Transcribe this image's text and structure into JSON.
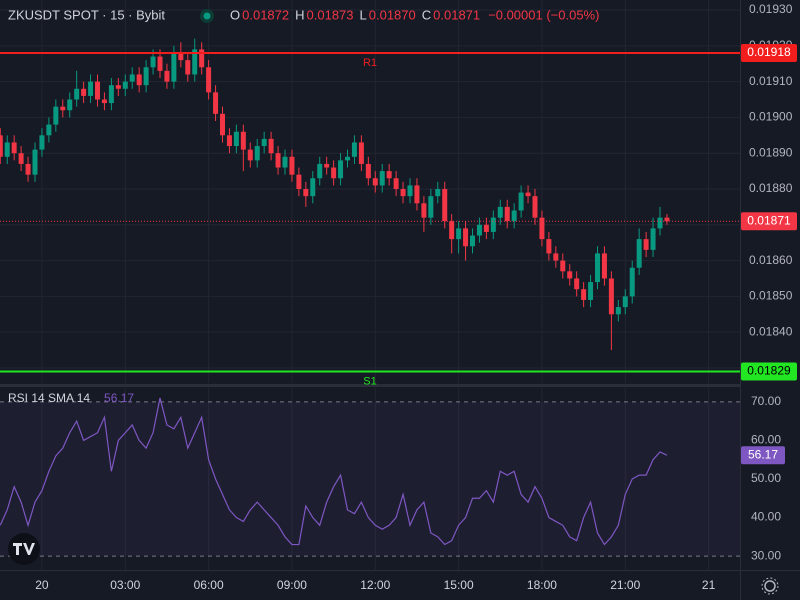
{
  "header": {
    "symbol": "ZKUSDT SPOT · 15 · Bybit",
    "ohlc": [
      {
        "key": "O",
        "value": "0.01872"
      },
      {
        "key": "H",
        "value": "0.01873"
      },
      {
        "key": "L",
        "value": "0.01870"
      },
      {
        "key": "C",
        "value": "0.01871"
      }
    ],
    "change": "−0.00001 (−0.05%)"
  },
  "chart_data": [
    {
      "type": "candlestick",
      "up_color": "#089981",
      "down_color": "#f23645",
      "grid": true,
      "x": [
        -1.5,
        -1.25,
        -1,
        -0.75,
        -0.5,
        -0.25,
        0,
        0.25,
        0.5,
        0.75,
        1,
        1.25,
        1.5,
        1.75,
        2,
        2.25,
        2.5,
        2.75,
        3,
        3.25,
        3.5,
        3.75,
        4,
        4.25,
        4.5,
        4.75,
        5,
        5.25,
        5.5,
        5.75,
        6,
        6.25,
        6.5,
        6.75,
        7,
        7.25,
        7.5,
        7.75,
        8,
        8.25,
        8.5,
        8.75,
        9,
        9.25,
        9.5,
        9.75,
        10,
        10.25,
        10.5,
        10.75,
        11,
        11.25,
        11.5,
        11.75,
        12,
        12.25,
        12.5,
        12.75,
        13,
        13.25,
        13.5,
        13.75,
        14,
        14.25,
        14.5,
        14.75,
        15,
        15.25,
        15.5,
        15.75,
        16,
        16.25,
        16.5,
        16.75,
        17,
        17.25,
        17.5,
        17.75,
        18,
        18.25,
        18.5,
        18.75,
        19,
        19.25,
        19.5,
        19.75,
        20,
        20.25,
        20.5,
        20.75,
        21,
        21.25,
        21.5,
        21.75,
        22,
        22.25,
        22.5
      ],
      "open": [
        0.01895,
        0.01889,
        0.01893,
        0.0189,
        0.01887,
        0.01884,
        0.01891,
        0.01895,
        0.01898,
        0.01903,
        0.01902,
        0.01905,
        0.01908,
        0.01906,
        0.0191,
        0.01905,
        0.01904,
        0.01909,
        0.01908,
        0.0191,
        0.01912,
        0.01909,
        0.01914,
        0.01917,
        0.01913,
        0.0191,
        0.01918,
        0.01916,
        0.01912,
        0.01919,
        0.01914,
        0.01907,
        0.01901,
        0.01895,
        0.01892,
        0.01896,
        0.01891,
        0.01888,
        0.01892,
        0.01894,
        0.0189,
        0.01886,
        0.01889,
        0.01884,
        0.0188,
        0.01878,
        0.01883,
        0.01887,
        0.01886,
        0.01883,
        0.01888,
        0.01889,
        0.01893,
        0.01887,
        0.01883,
        0.01881,
        0.01885,
        0.01883,
        0.0188,
        0.01878,
        0.01881,
        0.01876,
        0.01872,
        0.01878,
        0.0188,
        0.01871,
        0.01866,
        0.01869,
        0.01864,
        0.01867,
        0.0187,
        0.01868,
        0.01872,
        0.01875,
        0.01871,
        0.01874,
        0.01879,
        0.01878,
        0.01872,
        0.01866,
        0.01862,
        0.0186,
        0.01857,
        0.01855,
        0.01852,
        0.01849,
        0.01854,
        0.01862,
        0.01855,
        0.01845,
        0.01847,
        0.0185,
        0.01858,
        0.01866,
        0.01863,
        0.01869,
        0.01872
      ],
      "high": [
        0.01897,
        0.01895,
        0.01895,
        0.01892,
        0.01889,
        0.01893,
        0.01897,
        0.019,
        0.01905,
        0.01905,
        0.01907,
        0.01913,
        0.0191,
        0.01912,
        0.01912,
        0.01907,
        0.01911,
        0.01911,
        0.01912,
        0.01914,
        0.01914,
        0.01916,
        0.01919,
        0.01919,
        0.01915,
        0.0192,
        0.01921,
        0.01918,
        0.01922,
        0.01921,
        0.01916,
        0.01909,
        0.01903,
        0.01897,
        0.01898,
        0.01898,
        0.01893,
        0.01894,
        0.01896,
        0.01896,
        0.01892,
        0.01891,
        0.01891,
        0.01886,
        0.01882,
        0.01885,
        0.01889,
        0.01889,
        0.01888,
        0.0189,
        0.01891,
        0.01895,
        0.01895,
        0.01889,
        0.01885,
        0.01887,
        0.01887,
        0.01885,
        0.01882,
        0.01883,
        0.01883,
        0.01878,
        0.0188,
        0.01882,
        0.01882,
        0.01873,
        0.01871,
        0.01871,
        0.01869,
        0.01872,
        0.01872,
        0.01874,
        0.01877,
        0.01877,
        0.01876,
        0.01881,
        0.01881,
        0.0188,
        0.01874,
        0.01868,
        0.01864,
        0.01862,
        0.01859,
        0.01857,
        0.01854,
        0.01856,
        0.01864,
        0.01864,
        0.01857,
        0.01849,
        0.01852,
        0.0186,
        0.01869,
        0.01868,
        0.01872,
        0.01875,
        0.01873
      ],
      "low": [
        0.01887,
        0.01887,
        0.01888,
        0.01885,
        0.01882,
        0.01882,
        0.01889,
        0.01893,
        0.01896,
        0.019,
        0.019,
        0.01903,
        0.01904,
        0.01904,
        0.01903,
        0.01902,
        0.01902,
        0.01906,
        0.01906,
        0.01908,
        0.01907,
        0.01907,
        0.01912,
        0.01911,
        0.01908,
        0.01908,
        0.01914,
        0.0191,
        0.0191,
        0.01912,
        0.01905,
        0.01899,
        0.01893,
        0.0189,
        0.0189,
        0.01885,
        0.01886,
        0.01886,
        0.0189,
        0.01888,
        0.01884,
        0.01884,
        0.01882,
        0.01878,
        0.01875,
        0.01876,
        0.01881,
        0.01884,
        0.01881,
        0.01881,
        0.01886,
        0.01887,
        0.01885,
        0.01881,
        0.01879,
        0.01879,
        0.01881,
        0.01878,
        0.01876,
        0.01876,
        0.01874,
        0.01868,
        0.0187,
        0.01876,
        0.01869,
        0.01862,
        0.01862,
        0.0186,
        0.01862,
        0.01865,
        0.01866,
        0.01866,
        0.0187,
        0.01869,
        0.01869,
        0.01872,
        0.01876,
        0.0187,
        0.01864,
        0.0186,
        0.01858,
        0.01855,
        0.01853,
        0.0185,
        0.01847,
        0.01847,
        0.01852,
        0.01853,
        0.01835,
        0.01843,
        0.01845,
        0.01848,
        0.01856,
        0.01861,
        0.01861,
        0.01867,
        0.0187
      ],
      "close": [
        0.01889,
        0.01893,
        0.0189,
        0.01887,
        0.01884,
        0.01891,
        0.01895,
        0.01898,
        0.01903,
        0.01902,
        0.01905,
        0.01908,
        0.01906,
        0.0191,
        0.01905,
        0.01904,
        0.01909,
        0.01908,
        0.0191,
        0.01912,
        0.01909,
        0.01914,
        0.01917,
        0.01913,
        0.0191,
        0.01918,
        0.01916,
        0.01912,
        0.01919,
        0.01914,
        0.01907,
        0.01901,
        0.01895,
        0.01892,
        0.01896,
        0.01891,
        0.01888,
        0.01892,
        0.01894,
        0.0189,
        0.01886,
        0.01889,
        0.01884,
        0.0188,
        0.01878,
        0.01883,
        0.01887,
        0.01886,
        0.01883,
        0.01888,
        0.01889,
        0.01893,
        0.01887,
        0.01883,
        0.01881,
        0.01885,
        0.01883,
        0.0188,
        0.01878,
        0.01881,
        0.01876,
        0.01872,
        0.01878,
        0.0188,
        0.01871,
        0.01866,
        0.01869,
        0.01864,
        0.01867,
        0.0187,
        0.01868,
        0.01872,
        0.01875,
        0.01871,
        0.01874,
        0.01879,
        0.01878,
        0.01872,
        0.01866,
        0.01862,
        0.0186,
        0.01857,
        0.01855,
        0.01852,
        0.01849,
        0.01854,
        0.01862,
        0.01855,
        0.01845,
        0.01847,
        0.0185,
        0.01858,
        0.01866,
        0.01863,
        0.01869,
        0.01872,
        0.01871
      ],
      "xlim": [
        -1.51,
        25.13
      ],
      "xticks": [
        {
          "value": 0,
          "label": "20"
        },
        {
          "value": 3,
          "label": "03:00"
        },
        {
          "value": 6,
          "label": "06:00"
        },
        {
          "value": 9,
          "label": "09:00"
        },
        {
          "value": 12,
          "label": "12:00"
        },
        {
          "value": 15,
          "label": "15:00"
        },
        {
          "value": 18,
          "label": "18:00"
        },
        {
          "value": 21,
          "label": "21:00"
        },
        {
          "value": 24,
          "label": "21"
        }
      ],
      "ylim": [
        0.018258,
        0.019328
      ],
      "yticks": [
        {
          "value": 0.0183,
          "label": "0.01830"
        },
        {
          "value": 0.0184,
          "label": "0.01840"
        },
        {
          "value": 0.0185,
          "label": "0.01850"
        },
        {
          "value": 0.0186,
          "label": "0.01860"
        },
        {
          "value": 0.0187,
          "label": "0.01870"
        },
        {
          "value": 0.0188,
          "label": "0.01880"
        },
        {
          "value": 0.0189,
          "label": "0.01890"
        },
        {
          "value": 0.019,
          "label": "0.01900"
        },
        {
          "value": 0.0191,
          "label": "0.01910"
        },
        {
          "value": 0.0192,
          "label": "0.01920"
        },
        {
          "value": 0.0193,
          "label": "0.01930"
        }
      ],
      "levels": [
        {
          "name": "R1",
          "value": 0.01918,
          "color": "#f21d1d"
        },
        {
          "name": "S1",
          "value": 0.01829,
          "color": "#22e622"
        }
      ],
      "last_price": 0.01871
    },
    {
      "type": "line",
      "title": "RSI 14 SMA 14",
      "grid": false,
      "series": [
        {
          "name": "RSI",
          "color": "#7e57c2",
          "values": [
            38,
            42,
            48,
            44,
            38,
            44,
            47,
            52,
            56,
            58,
            62,
            65,
            60,
            61,
            62,
            66,
            52,
            60,
            62,
            64,
            60,
            58,
            62,
            71,
            64,
            63,
            66,
            58,
            62,
            66,
            55,
            50,
            46,
            42,
            40,
            39,
            42,
            44,
            42,
            40,
            38,
            35,
            33,
            33,
            43,
            40,
            38,
            44,
            48,
            51,
            42,
            41,
            44,
            40,
            38,
            37,
            38,
            40,
            46,
            38,
            42,
            44,
            36,
            35,
            33,
            34,
            38,
            40,
            45,
            45,
            47,
            44,
            52,
            51,
            52,
            46,
            44,
            48,
            45,
            40,
            39,
            38,
            35,
            34,
            40,
            44,
            36,
            33,
            35,
            38,
            46,
            50,
            51,
            51,
            55,
            57,
            56.17
          ]
        }
      ],
      "ylim": [
        26.4,
        73.6
      ],
      "yticks": [
        {
          "value": 30,
          "label": "30.00"
        },
        {
          "value": 40,
          "label": "40.00"
        },
        {
          "value": 50,
          "label": "50.00"
        },
        {
          "value": 60,
          "label": "60.00"
        },
        {
          "value": 70,
          "label": "70.00"
        }
      ],
      "bands": [
        30,
        70
      ]
    }
  ]
}
